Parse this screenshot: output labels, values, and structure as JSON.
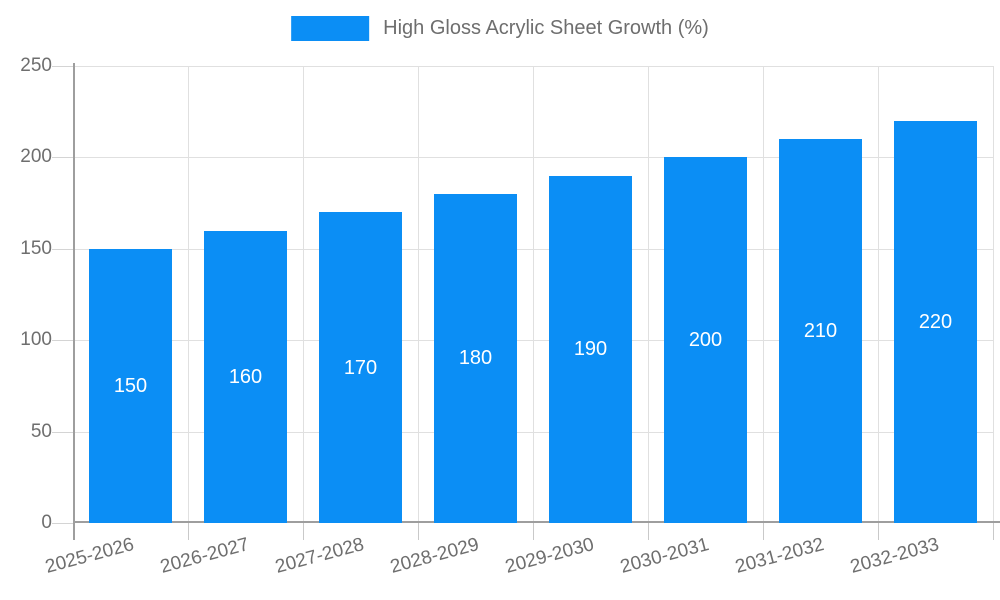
{
  "legend": {
    "label": "High Gloss Acrylic Sheet Growth (%)"
  },
  "chart_data": {
    "type": "bar",
    "title": "",
    "xlabel": "",
    "ylabel": "",
    "categories": [
      "2025-2026",
      "2026-2027",
      "2027-2028",
      "2028-2029",
      "2029-2030",
      "2030-2031",
      "2031-2032",
      "2032-2033"
    ],
    "values": [
      150,
      160,
      170,
      180,
      190,
      200,
      210,
      220
    ],
    "series_name": "High Gloss Acrylic Sheet Growth (%)",
    "ylim": [
      0,
      250
    ],
    "yticks": [
      0,
      50,
      100,
      150,
      200,
      250
    ],
    "grid": true,
    "legend_position": "top",
    "value_labels_shown": true
  },
  "colors": {
    "bar": "#0b8ef5",
    "grid": "#e0e0e0",
    "axis": "#9e9e9e",
    "text": "#6e6e6e",
    "bar_label": "#ffffff",
    "background": "#ffffff"
  }
}
